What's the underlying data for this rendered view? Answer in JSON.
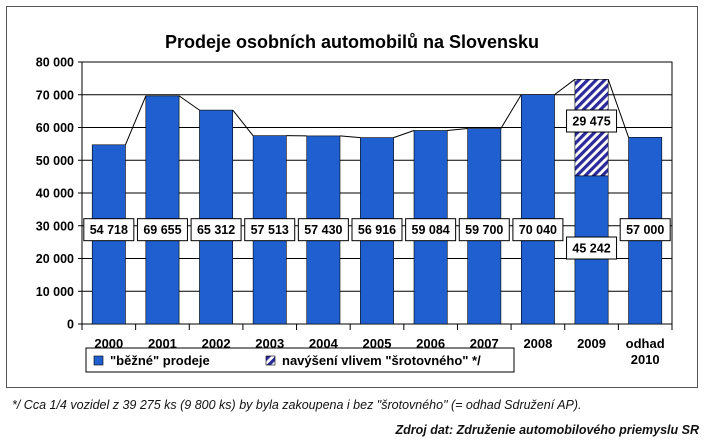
{
  "chart_data": {
    "type": "bar",
    "title": "Prodeje osobních automobilů na Slovensku",
    "categories": [
      "2000",
      "2001",
      "2002",
      "2003",
      "2004",
      "2005",
      "2006",
      "2007",
      "2008",
      "2009",
      "odhad 2010"
    ],
    "series": [
      {
        "name": "\"běžné\" prodeje",
        "values": [
          54718,
          69655,
          65312,
          57513,
          57430,
          56916,
          59084,
          59700,
          70040,
          45242,
          57000
        ],
        "color": "#1f5fd0"
      },
      {
        "name": "navýšení vlivem \"šrotovného\" */",
        "values": [
          0,
          0,
          0,
          0,
          0,
          0,
          0,
          0,
          0,
          29475,
          0
        ],
        "color": "#2a2a9a",
        "pattern": "diagonal-hatch"
      }
    ],
    "data_labels": [
      "54 718",
      "69 655",
      "65 312",
      "57 513",
      "57 430",
      "56 916",
      "59 084",
      "59 700",
      "70 040",
      "45 242",
      "57 000"
    ],
    "stack_label": "29 475",
    "yticks": [
      0,
      10000,
      20000,
      30000,
      40000,
      50000,
      60000,
      70000,
      80000
    ],
    "ytick_labels": [
      "0",
      "10 000",
      "20 000",
      "30 000",
      "40 000",
      "50 000",
      "60 000",
      "70 000",
      "80 000"
    ],
    "ylim": [
      0,
      80000
    ],
    "grid": true,
    "legend_position": "bottom",
    "xlabel": "",
    "ylabel": ""
  },
  "footnote": "*/ Cca 1/4 vozidel z 39 275 ks (9 800 ks) by byla zakoupena i bez \"šrotovného\" (= odhad Sdružení AP).",
  "source": "Zdroj dat: Združenie automobilového priemyslu SR"
}
